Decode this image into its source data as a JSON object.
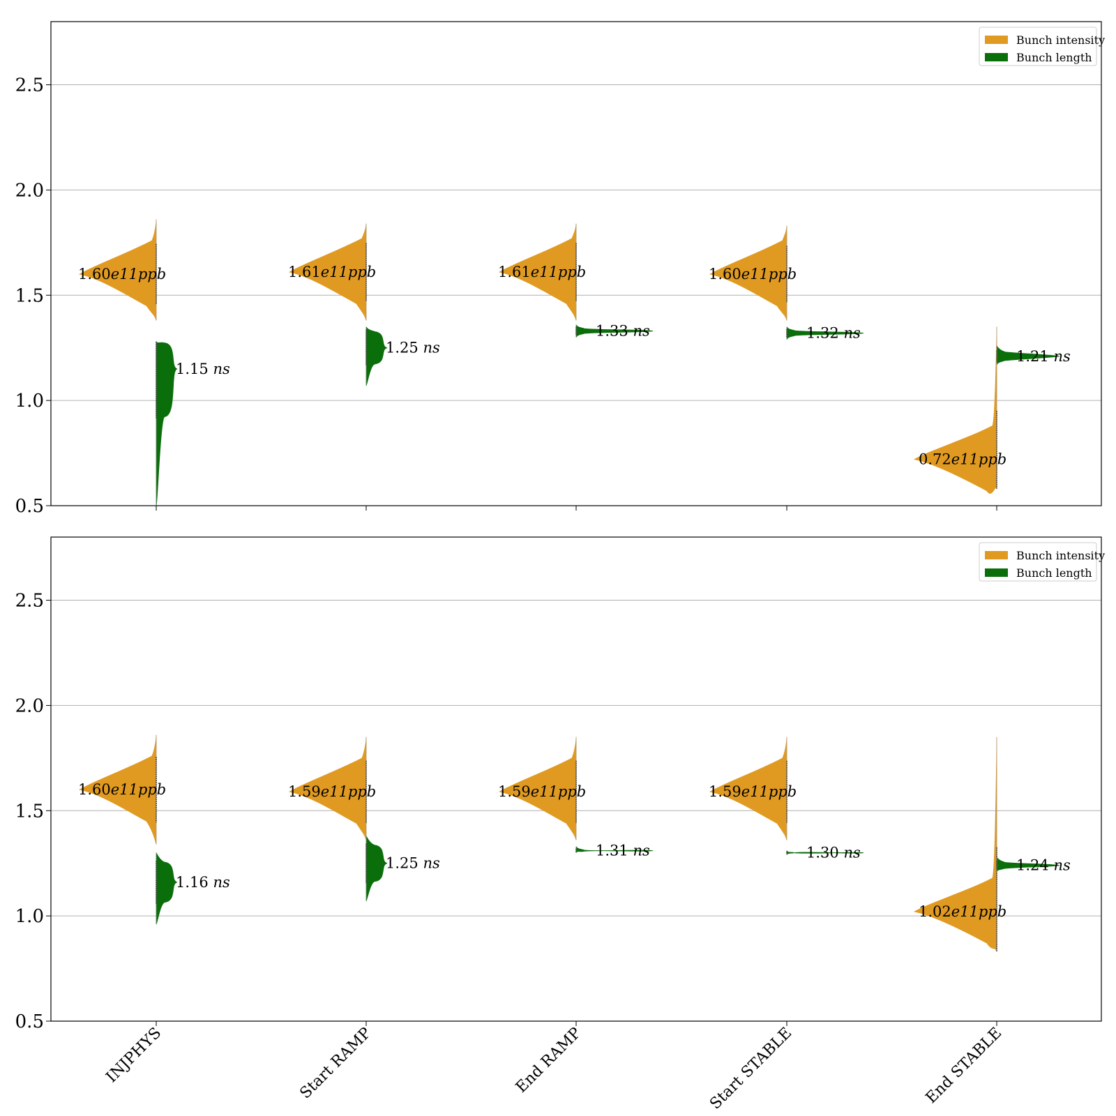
{
  "chart_data": [
    {
      "type": "violin",
      "ylim": [
        0.5,
        2.8
      ],
      "yticks": [
        "0.5",
        "1.0",
        "1.5",
        "2.0",
        "2.5"
      ],
      "ytick_values": [
        0.5,
        1.0,
        1.5,
        2.0,
        2.5
      ],
      "grid": "horizontal",
      "legend_position": "top-right",
      "categories": [
        "INJPHYS",
        "Start RAMP",
        "End RAMP",
        "Start STABLE",
        "End STABLE"
      ],
      "series": [
        {
          "name": "Bunch intensity",
          "color": "#e09a22",
          "side": "left",
          "medians": [
            1.6,
            1.61,
            1.61,
            1.6,
            0.72
          ],
          "y_range": [
            [
              1.38,
              1.86
            ],
            [
              1.38,
              1.84
            ],
            [
              1.38,
              1.84
            ],
            [
              1.38,
              1.83
            ],
            [
              0.58,
              1.35
            ]
          ],
          "annotations": [
            {
              "value": "1.60",
              "exp": "e11",
              "unit": "ppb"
            },
            {
              "value": "1.61",
              "exp": "e11",
              "unit": "ppb"
            },
            {
              "value": "1.61",
              "exp": "e11",
              "unit": "ppb"
            },
            {
              "value": "1.60",
              "exp": "e11",
              "unit": "ppb"
            },
            {
              "value": "0.72",
              "exp": "e11",
              "unit": "ppb"
            }
          ]
        },
        {
          "name": "Bunch length",
          "color": "#0a6e0a",
          "side": "right",
          "medians": [
            1.15,
            1.25,
            1.33,
            1.32,
            1.21
          ],
          "y_range": [
            [
              0.5,
              1.28
            ],
            [
              1.07,
              1.35
            ],
            [
              1.3,
              1.36
            ],
            [
              1.29,
              1.35
            ],
            [
              1.17,
              1.26
            ]
          ],
          "annotations": [
            {
              "value": "1.15",
              "unit": "ns"
            },
            {
              "value": "1.25",
              "unit": "ns"
            },
            {
              "value": "1.33",
              "unit": "ns"
            },
            {
              "value": "1.32",
              "unit": "ns"
            },
            {
              "value": "1.21",
              "unit": "ns"
            }
          ]
        }
      ]
    },
    {
      "type": "violin",
      "ylim": [
        0.5,
        2.8
      ],
      "yticks": [
        "0.5",
        "1.0",
        "1.5",
        "2.0",
        "2.5"
      ],
      "ytick_values": [
        0.5,
        1.0,
        1.5,
        2.0,
        2.5
      ],
      "grid": "horizontal",
      "legend_position": "top-right",
      "categories": [
        "INJPHYS",
        "Start RAMP",
        "End RAMP",
        "Start STABLE",
        "End STABLE"
      ],
      "series": [
        {
          "name": "Bunch intensity",
          "color": "#e09a22",
          "side": "left",
          "medians": [
            1.6,
            1.59,
            1.59,
            1.59,
            1.02
          ],
          "y_range": [
            [
              1.34,
              1.86
            ],
            [
              1.36,
              1.85
            ],
            [
              1.36,
              1.85
            ],
            [
              1.36,
              1.85
            ],
            [
              0.83,
              1.85
            ]
          ],
          "annotations": [
            {
              "value": "1.60",
              "exp": "e11",
              "unit": "ppb"
            },
            {
              "value": "1.59",
              "exp": "e11",
              "unit": "ppb"
            },
            {
              "value": "1.59",
              "exp": "e11",
              "unit": "ppb"
            },
            {
              "value": "1.59",
              "exp": "e11",
              "unit": "ppb"
            },
            {
              "value": "1.02",
              "exp": "e11",
              "unit": "ppb"
            }
          ]
        },
        {
          "name": "Bunch length",
          "color": "#0a6e0a",
          "side": "right",
          "medians": [
            1.16,
            1.25,
            1.31,
            1.3,
            1.24
          ],
          "y_range": [
            [
              0.96,
              1.3
            ],
            [
              1.07,
              1.38
            ],
            [
              1.3,
              1.33
            ],
            [
              1.29,
              1.31
            ],
            [
              1.21,
              1.28
            ]
          ],
          "annotations": [
            {
              "value": "1.16",
              "unit": "ns"
            },
            {
              "value": "1.25",
              "unit": "ns"
            },
            {
              "value": "1.31",
              "unit": "ns"
            },
            {
              "value": "1.30",
              "unit": "ns"
            },
            {
              "value": "1.24",
              "unit": "ns"
            }
          ]
        }
      ]
    }
  ]
}
